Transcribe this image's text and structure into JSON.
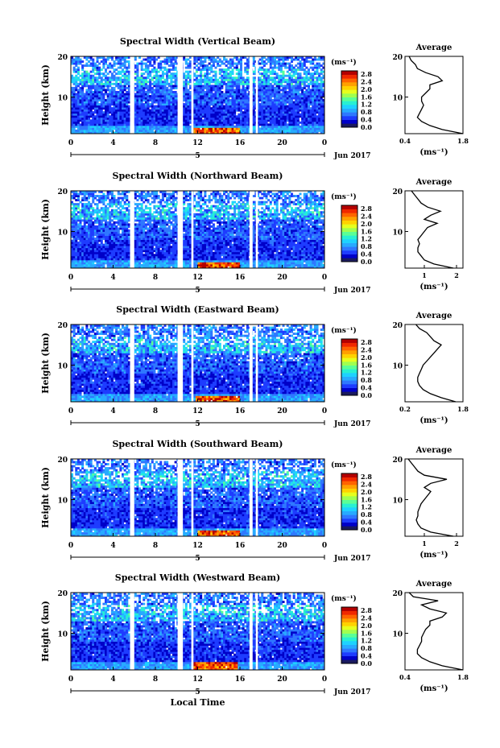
{
  "colors": {
    "colormap": [
      "#1a1a5e",
      "#0000c8",
      "#1e3cff",
      "#2f78ff",
      "#28aaff",
      "#1ed2ff",
      "#28f0d2",
      "#5aff96",
      "#a0ff50",
      "#e6ff1e",
      "#ffd200",
      "#ffa000",
      "#ff6400",
      "#f02800",
      "#b40000"
    ],
    "line": "#000000",
    "gap": "#ffffff"
  },
  "colorbar": {
    "unit": "(ms⁻¹)",
    "ticks": [
      "2.8",
      "2.4",
      "2.0",
      "1.6",
      "1.2",
      "0.8",
      "0.4",
      "0.0"
    ]
  },
  "x_axis": {
    "ticks": [
      "0",
      "4",
      "8",
      "12",
      "16",
      "20",
      "0"
    ],
    "day_label": "5",
    "month_label": "Jun 2017",
    "xlabel": "Local Time"
  },
  "ylabel": "Height (km)",
  "average_title": "Average",
  "average_unit": "(ms⁻¹)",
  "chart_data": [
    {
      "type": "heatmap",
      "title": "Spectral Width (Vertical Beam)",
      "xlim": [
        0,
        24
      ],
      "ylim": [
        1,
        20
      ],
      "yticks": [
        "20",
        "10"
      ],
      "data_gaps_hours": [
        [
          5.6,
          6.0
        ],
        [
          10.1,
          10.6
        ],
        [
          11.4,
          11.6
        ],
        [
          16.9,
          17.2
        ],
        [
          17.5,
          17.7
        ]
      ],
      "high_width_region": {
        "x_hours": [
          11.6,
          16.0
        ],
        "height_km": [
          1,
          2.5
        ],
        "value_ms": 2.8
      },
      "average_profile": {
        "type": "line",
        "xticks": [
          "0.4",
          "1.8"
        ],
        "xlim": [
          0.4,
          1.8
        ],
        "height_km": [
          1,
          2,
          3,
          4,
          5,
          6,
          7,
          8,
          9,
          10,
          11,
          12,
          13,
          14,
          15,
          16,
          17,
          18,
          19,
          20
        ],
        "value_ms": [
          1.8,
          1.3,
          1.0,
          0.8,
          0.7,
          0.75,
          0.8,
          0.85,
          0.8,
          0.8,
          0.9,
          1.0,
          1.0,
          1.3,
          1.2,
          0.9,
          0.7,
          0.65,
          0.55,
          0.5
        ]
      }
    },
    {
      "type": "heatmap",
      "title": "Spectral Width (Northward Beam)",
      "xlim": [
        0,
        24
      ],
      "ylim": [
        1,
        20
      ],
      "yticks": [
        "20",
        "10"
      ],
      "data_gaps_hours": [
        [
          5.6,
          6.0
        ],
        [
          10.1,
          10.6
        ],
        [
          11.4,
          11.6
        ],
        [
          16.9,
          17.2
        ],
        [
          17.5,
          17.7
        ]
      ],
      "high_width_region": {
        "x_hours": [
          12.0,
          16.0
        ],
        "height_km": [
          1,
          2.5
        ],
        "value_ms": 2.8
      },
      "average_profile": {
        "type": "line",
        "xticks": [
          "1",
          "2"
        ],
        "xlim": [
          0.4,
          2.2
        ],
        "height_km": [
          1,
          2,
          3,
          4,
          5,
          6,
          7,
          8,
          9,
          10,
          11,
          12,
          13,
          14,
          15,
          16,
          17,
          18,
          19,
          20
        ],
        "value_ms": [
          1.9,
          1.3,
          1.0,
          0.9,
          0.8,
          0.8,
          0.85,
          0.8,
          0.9,
          1.0,
          1.1,
          1.4,
          1.0,
          1.2,
          1.5,
          1.1,
          0.9,
          0.8,
          0.7,
          0.6
        ]
      }
    },
    {
      "type": "heatmap",
      "title": "Spectral Width (Eastward Beam)",
      "xlim": [
        0,
        24
      ],
      "ylim": [
        1,
        20
      ],
      "yticks": [
        "20",
        "10"
      ],
      "data_gaps_hours": [
        [
          5.6,
          6.0
        ],
        [
          10.1,
          10.6
        ],
        [
          11.4,
          11.6
        ],
        [
          16.9,
          17.2
        ],
        [
          17.5,
          17.7
        ]
      ],
      "high_width_region": {
        "x_hours": [
          11.8,
          16.0
        ],
        "height_km": [
          1,
          2.5
        ],
        "value_ms": 2.8
      },
      "average_profile": {
        "type": "line",
        "xticks": [
          "0.2",
          "1.8"
        ],
        "xlim": [
          0.2,
          1.8
        ],
        "height_km": [
          1,
          2,
          3,
          4,
          5,
          6,
          7,
          8,
          9,
          10,
          11,
          12,
          13,
          14,
          15,
          16,
          17,
          18,
          19,
          20
        ],
        "value_ms": [
          1.6,
          1.2,
          0.9,
          0.7,
          0.6,
          0.55,
          0.55,
          0.6,
          0.65,
          0.7,
          0.8,
          0.9,
          1.0,
          1.1,
          1.2,
          1.0,
          0.9,
          0.8,
          0.6,
          0.5
        ]
      }
    },
    {
      "type": "heatmap",
      "title": "Spectral Width (Southward Beam)",
      "xlim": [
        0,
        24
      ],
      "ylim": [
        1,
        20
      ],
      "yticks": [
        "20",
        "10"
      ],
      "data_gaps_hours": [
        [
          5.6,
          6.0
        ],
        [
          10.1,
          10.6
        ],
        [
          11.4,
          11.6
        ],
        [
          16.9,
          17.2
        ],
        [
          17.5,
          17.7
        ]
      ],
      "high_width_region": {
        "x_hours": [
          12.0,
          16.0
        ],
        "height_km": [
          1,
          2.5
        ],
        "value_ms": 2.8
      },
      "average_profile": {
        "type": "line",
        "xticks": [
          "1",
          "2"
        ],
        "xlim": [
          0.4,
          2.2
        ],
        "height_km": [
          1,
          2,
          3,
          4,
          5,
          6,
          7,
          8,
          9,
          10,
          11,
          12,
          13,
          14,
          15,
          16,
          17,
          18,
          19,
          20
        ],
        "value_ms": [
          1.9,
          1.2,
          0.9,
          0.8,
          0.75,
          0.8,
          0.8,
          0.85,
          0.9,
          1.0,
          1.1,
          1.2,
          1.0,
          1.2,
          1.7,
          1.0,
          0.8,
          0.7,
          0.6,
          0.5
        ]
      }
    },
    {
      "type": "heatmap",
      "title": "Spectral Width (Westward Beam)",
      "xlim": [
        0,
        24
      ],
      "ylim": [
        1,
        20
      ],
      "yticks": [
        "20",
        "10"
      ],
      "data_gaps_hours": [
        [
          5.6,
          6.0
        ],
        [
          10.1,
          10.6
        ],
        [
          11.4,
          11.6
        ],
        [
          16.9,
          17.2
        ],
        [
          17.5,
          17.7
        ]
      ],
      "high_width_region": {
        "x_hours": [
          11.6,
          15.8
        ],
        "height_km": [
          1,
          3.0
        ],
        "value_ms": 2.8
      },
      "average_profile": {
        "type": "line",
        "xticks": [
          "0.4",
          "1.8"
        ],
        "xlim": [
          0.4,
          1.8
        ],
        "height_km": [
          1,
          2,
          3,
          4,
          5,
          6,
          7,
          8,
          9,
          10,
          11,
          12,
          13,
          14,
          15,
          16,
          17,
          18,
          19,
          20
        ],
        "value_ms": [
          1.8,
          1.3,
          1.0,
          0.8,
          0.7,
          0.7,
          0.75,
          0.8,
          0.8,
          0.85,
          0.9,
          1.0,
          1.0,
          1.3,
          1.4,
          1.0,
          0.8,
          1.2,
          0.6,
          0.5
        ]
      }
    }
  ]
}
